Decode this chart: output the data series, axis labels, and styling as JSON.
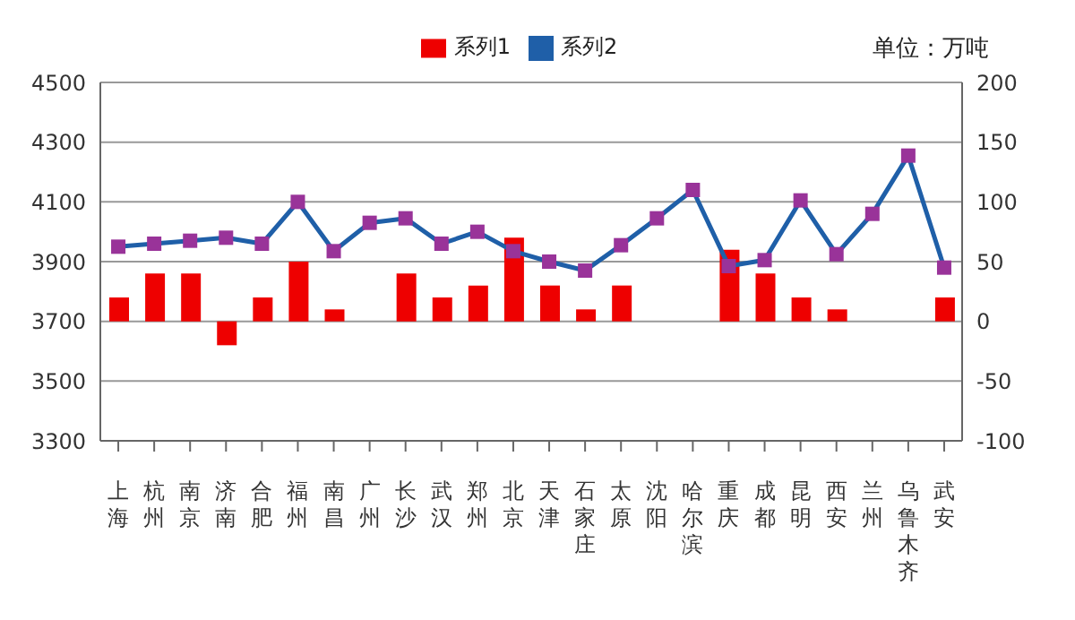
{
  "chart_data": {
    "type": "bar",
    "categories": [
      "上海",
      "杭州",
      "南京",
      "济南",
      "合肥",
      "福州",
      "南昌",
      "广州",
      "长沙",
      "武汉",
      "郑州",
      "北京",
      "天津",
      "石家庄",
      "太原",
      "沈阳",
      "哈尔滨",
      "重庆",
      "成都",
      "昆明",
      "西安",
      "兰州",
      "乌鲁木齐",
      "武安"
    ],
    "series": [
      {
        "name": "系列1",
        "axis": "y2",
        "color": "#ee0000",
        "values": [
          20,
          40,
          40,
          -20,
          20,
          50,
          10,
          0,
          40,
          20,
          30,
          70,
          30,
          10,
          30,
          0,
          0,
          60,
          40,
          20,
          10,
          0,
          0,
          20
        ]
      },
      {
        "name": "系列2",
        "type": "line",
        "color": "#1f5fa8",
        "marker": "square",
        "values": [
          3950,
          3960,
          3970,
          3980,
          3960,
          4100,
          3935,
          4030,
          4045,
          3960,
          4000,
          3935,
          3900,
          3870,
          3955,
          4045,
          4140,
          3885,
          3905,
          4105,
          3925,
          4060,
          4255,
          3880
        ]
      }
    ],
    "ylim": [
      3300,
      4500
    ],
    "yticks": [
      3300,
      3500,
      3700,
      3900,
      4100,
      4300,
      4500
    ],
    "y2lim": [
      -100,
      200
    ],
    "y2ticks": [
      -100,
      -50,
      0,
      50,
      100,
      150,
      200
    ],
    "grid": "y",
    "legend": "top",
    "annotations": [
      "单位：万吨"
    ]
  }
}
